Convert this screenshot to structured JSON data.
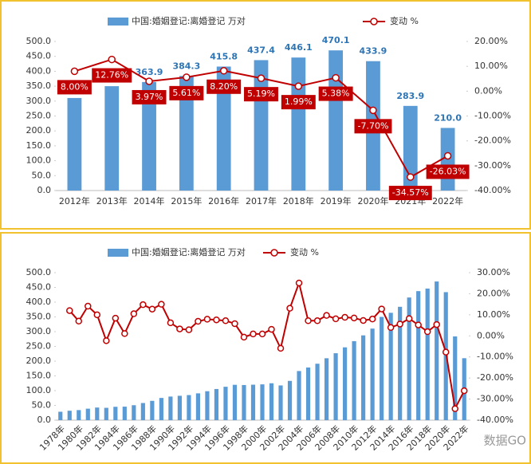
{
  "chart_data": [
    {
      "type": "combo",
      "categories": [
        "2012年",
        "2013年",
        "2014年",
        "2015年",
        "2016年",
        "2017年",
        "2018年",
        "2019年",
        "2020年",
        "2021年",
        "2022年"
      ],
      "series": [
        {
          "name": "中国:婚姻登记:离婚登记 万对",
          "color": "#5b9bd5",
          "kind": "bar",
          "values": [
            310.4,
            350.0,
            363.9,
            384.3,
            415.8,
            437.4,
            446.1,
            470.1,
            433.9,
            283.9,
            210.0
          ],
          "value_labels": [
            null,
            null,
            "363.9",
            "384.3",
            "415.8",
            "437.4",
            "446.1",
            "470.1",
            "433.9",
            "283.9",
            "210.0"
          ]
        },
        {
          "name": "变动 %",
          "color": "#c00000",
          "kind": "line",
          "axis": "y2",
          "values": [
            8.0,
            12.76,
            3.97,
            5.61,
            8.2,
            5.19,
            1.99,
            5.38,
            -7.7,
            -34.57,
            -26.03
          ],
          "value_labels": [
            "8.00%",
            "12.76%",
            "3.97%",
            "5.61%",
            "8.20%",
            "5.19%",
            "1.99%",
            "5.38%",
            "-7.70%",
            "-34.57%",
            "-26.03%"
          ]
        }
      ],
      "ylim": [
        0,
        500
      ],
      "yticks": [
        {
          "value": 0,
          "label": "0.0"
        },
        {
          "value": 50,
          "label": "50.0"
        },
        {
          "value": 100,
          "label": "100.0"
        },
        {
          "value": 150,
          "label": "150.0"
        },
        {
          "value": 200,
          "label": "200.0"
        },
        {
          "value": 250,
          "label": "250.0"
        },
        {
          "value": 300,
          "label": "300.0"
        },
        {
          "value": 350,
          "label": "350.0"
        },
        {
          "value": 400,
          "label": "400.0"
        },
        {
          "value": 450,
          "label": "450.0"
        },
        {
          "value": 500,
          "label": "500.0"
        }
      ],
      "y2lim": [
        -40,
        20
      ],
      "y2ticks": [
        {
          "value": -40,
          "label": "-40.00%"
        },
        {
          "value": -30,
          "label": "-30.00%"
        },
        {
          "value": -20,
          "label": "-20.00%"
        },
        {
          "value": -10,
          "label": "-10.00%"
        },
        {
          "value": 0,
          "label": "0.00%"
        },
        {
          "value": 10,
          "label": "10.00%"
        },
        {
          "value": 20,
          "label": "20.00%"
        }
      ]
    },
    {
      "type": "combo",
      "categories": [
        "1978年",
        null,
        "1980年",
        null,
        "1982年",
        null,
        "1984年",
        null,
        "1986年",
        null,
        "1988年",
        null,
        "1990年",
        null,
        "1992年",
        null,
        "1994年",
        null,
        "1996年",
        null,
        "1998年",
        null,
        "2000年",
        null,
        "2002年",
        null,
        "2004年",
        null,
        "2006年",
        null,
        "2008年",
        null,
        "2010年",
        null,
        "2012年",
        null,
        "2014年",
        null,
        "2016年",
        null,
        "2018年",
        null,
        "2020年",
        null,
        "2022年"
      ],
      "series": [
        {
          "name": "中国:婚姻登记:离婚登记 万对",
          "color": "#5b9bd5",
          "kind": "bar",
          "values": [
            28.5,
            31.9,
            34.1,
            38.9,
            42.8,
            41.8,
            45.3,
            45.8,
            50.6,
            58.1,
            65.5,
            75.3,
            80.0,
            82.6,
            85.0,
            90.9,
            98.1,
            105.6,
            113.2,
            119.8,
            119.1,
            120.2,
            121.3,
            125.1,
            117.7,
            133.1,
            166.5,
            178.5,
            191.3,
            209.8,
            226.9,
            246.8,
            267.8,
            287.4,
            310.4,
            350.0,
            363.9,
            384.3,
            415.8,
            437.4,
            446.1,
            470.1,
            433.9,
            283.9,
            210.0
          ]
        },
        {
          "name": "变动 %",
          "color": "#c00000",
          "kind": "line",
          "axis": "y2",
          "values": [
            null,
            12.0,
            7.0,
            14.1,
            10.0,
            -2.3,
            8.4,
            1.1,
            10.5,
            14.8,
            12.7,
            15.0,
            6.2,
            3.3,
            2.9,
            6.9,
            7.9,
            7.6,
            7.2,
            5.8,
            -0.6,
            0.9,
            0.9,
            3.1,
            -5.9,
            13.1,
            25.1,
            7.2,
            7.2,
            9.7,
            8.1,
            8.8,
            8.5,
            7.3,
            8.0,
            12.76,
            3.97,
            5.61,
            8.2,
            5.19,
            1.99,
            5.38,
            -7.7,
            -34.57,
            -26.03
          ]
        }
      ],
      "ylim": [
        0,
        500
      ],
      "yticks": [
        {
          "value": 0,
          "label": "0.0"
        },
        {
          "value": 50,
          "label": "50.0"
        },
        {
          "value": 100,
          "label": "100.0"
        },
        {
          "value": 150,
          "label": "150.0"
        },
        {
          "value": 200,
          "label": "200.0"
        },
        {
          "value": 250,
          "label": "250.0"
        },
        {
          "value": 300,
          "label": "300.0"
        },
        {
          "value": 350,
          "label": "350.0"
        },
        {
          "value": 400,
          "label": "400.0"
        },
        {
          "value": 450,
          "label": "450.0"
        },
        {
          "value": 500,
          "label": "500.0"
        }
      ],
      "y2lim": [
        -40,
        30
      ],
      "y2ticks": [
        {
          "value": -40,
          "label": "-40.00%"
        },
        {
          "value": -30,
          "label": "-30.00%"
        },
        {
          "value": -20,
          "label": "-20.00%"
        },
        {
          "value": -10,
          "label": "-10.00%"
        },
        {
          "value": 0,
          "label": "0.00%"
        },
        {
          "value": 10,
          "label": "10.00%"
        },
        {
          "value": 20,
          "label": "20.00%"
        },
        {
          "value": 30,
          "label": "30.00%"
        }
      ],
      "watermark": "数据GO"
    }
  ]
}
